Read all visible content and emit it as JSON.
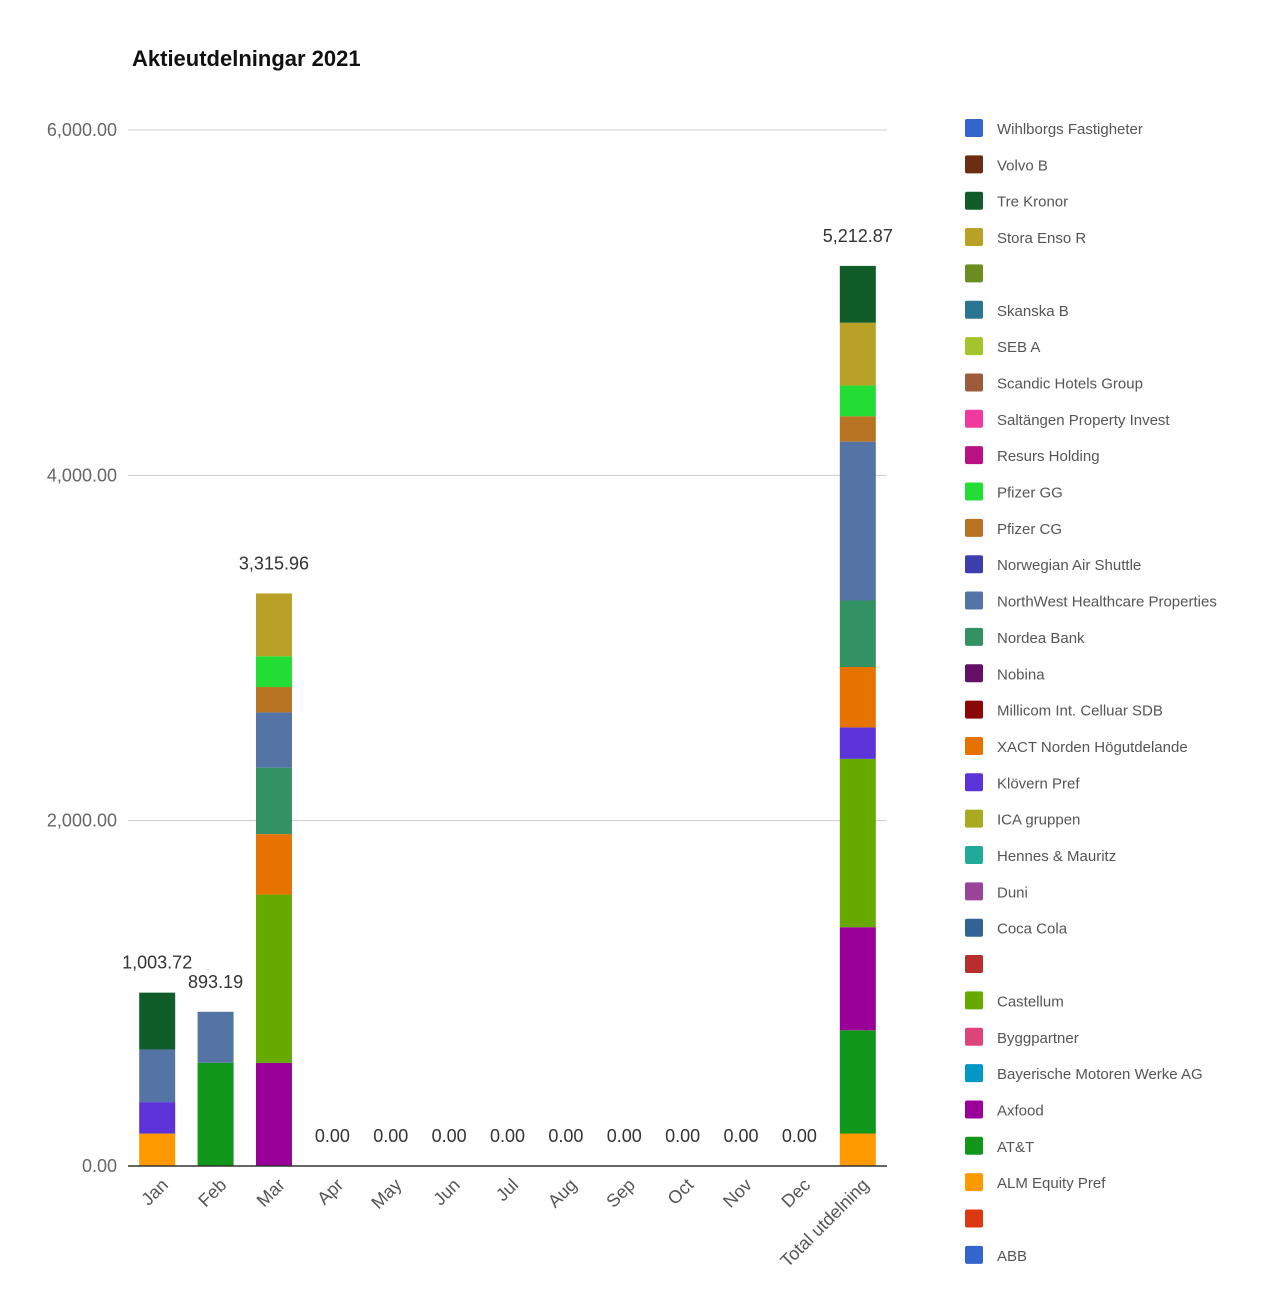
{
  "chart_data": {
    "type": "bar",
    "stacked": true,
    "title": "Aktieutdelningar 2021",
    "categories": [
      "Jan",
      "Feb",
      "Mar",
      "Apr",
      "May",
      "Jun",
      "Jul",
      "Aug",
      "Sep",
      "Oct",
      "Nov",
      "Dec",
      "Total utdelning"
    ],
    "totals": [
      1003.72,
      893.19,
      3315.96,
      0,
      0,
      0,
      0,
      0,
      0,
      0,
      0,
      0,
      5212.87
    ],
    "total_labels": [
      "1,003.72",
      "893.19",
      "3,315.96",
      "0.00",
      "0.00",
      "0.00",
      "0.00",
      "0.00",
      "0.00",
      "0.00",
      "0.00",
      "0.00",
      "5,212.87"
    ],
    "ylim": [
      0,
      6000
    ],
    "yticks": [
      0,
      2000,
      4000,
      6000
    ],
    "ytick_labels": [
      "0.00",
      "2,000.00",
      "4,000.00",
      "6,000.00"
    ],
    "grid": true,
    "legend_position": "right",
    "series": [
      {
        "name": "ALM Equity Pref",
        "color": "#ff9900",
        "values": [
          188,
          0,
          0,
          0,
          0,
          0,
          0,
          0,
          0,
          0,
          0,
          0,
          188
        ]
      },
      {
        "name": "AT&T",
        "color": "#109618",
        "values": [
          0,
          598,
          0,
          0,
          0,
          0,
          0,
          0,
          0,
          0,
          0,
          0,
          598
        ]
      },
      {
        "name": "Axfood",
        "color": "#990099",
        "values": [
          0,
          0,
          597,
          0,
          0,
          0,
          0,
          0,
          0,
          0,
          0,
          0,
          597
        ]
      },
      {
        "name": "Castellum",
        "color": "#66aa00",
        "values": [
          0,
          0,
          975,
          0,
          0,
          0,
          0,
          0,
          0,
          0,
          0,
          0,
          975
        ]
      },
      {
        "name": "Klövern Pref",
        "color": "#5b33d9",
        "values": [
          182,
          0,
          0,
          0,
          0,
          0,
          0,
          0,
          0,
          0,
          0,
          0,
          182
        ]
      },
      {
        "name": "XACT Norden Högutdelande",
        "color": "#e67300",
        "values": [
          0,
          0,
          350,
          0,
          0,
          0,
          0,
          0,
          0,
          0,
          0,
          0,
          350
        ]
      },
      {
        "name": "Nordea Bank",
        "color": "#329262",
        "values": [
          0,
          0,
          385,
          0,
          0,
          0,
          0,
          0,
          0,
          0,
          0,
          0,
          385
        ]
      },
      {
        "name": "NorthWest Healthcare Properties",
        "color": "#5574a6",
        "values": [
          305,
          295,
          320,
          0,
          0,
          0,
          0,
          0,
          0,
          0,
          0,
          0,
          920
        ]
      },
      {
        "name": "Pfizer CG",
        "color": "#b77322",
        "values": [
          0,
          0,
          147,
          0,
          0,
          0,
          0,
          0,
          0,
          0,
          0,
          0,
          147
        ]
      },
      {
        "name": "Pfizer GG",
        "color": "#22dd33",
        "values": [
          0,
          0,
          178,
          0,
          0,
          0,
          0,
          0,
          0,
          0,
          0,
          0,
          178
        ]
      },
      {
        "name": "Stora Enso R",
        "color": "#b8a126",
        "values": [
          0,
          0,
          364,
          0,
          0,
          0,
          0,
          0,
          0,
          0,
          0,
          0,
          364
        ]
      },
      {
        "name": "Tre Kronor",
        "color": "#115d2a",
        "values": [
          329,
          0,
          0,
          0,
          0,
          0,
          0,
          0,
          0,
          0,
          0,
          0,
          329
        ]
      }
    ],
    "legend": [
      {
        "name": "Wihlborgs Fastigheter",
        "color": "#3366cc"
      },
      {
        "name": "Volvo B",
        "color": "#6b2e13"
      },
      {
        "name": "Tre Kronor",
        "color": "#115d2a"
      },
      {
        "name": "Stora Enso R",
        "color": "#b8a126"
      },
      {
        "name": "",
        "color": "#6b8e23"
      },
      {
        "name": "Skanska B",
        "color": "#2a7592"
      },
      {
        "name": "SEB A",
        "color": "#a4c42c"
      },
      {
        "name": "Scandic Hotels Group",
        "color": "#9c5b3b"
      },
      {
        "name": "Saltängen Property Invest",
        "color": "#f03aa0"
      },
      {
        "name": "Resurs Holding",
        "color": "#b91383"
      },
      {
        "name": "Pfizer GG",
        "color": "#22dd33"
      },
      {
        "name": "Pfizer CG",
        "color": "#b77322"
      },
      {
        "name": "Norwegian Air Shuttle",
        "color": "#3b3eac"
      },
      {
        "name": "NorthWest Healthcare Properties",
        "color": "#5574a6"
      },
      {
        "name": "Nordea Bank",
        "color": "#329262"
      },
      {
        "name": "Nobina",
        "color": "#651067"
      },
      {
        "name": "Millicom Int. Celluar SDB",
        "color": "#8b0707"
      },
      {
        "name": "XACT Norden Högutdelande",
        "color": "#e67300"
      },
      {
        "name": "Klövern Pref",
        "color": "#5b33d9"
      },
      {
        "name": "ICA gruppen",
        "color": "#aaaa22"
      },
      {
        "name": "Hennes & Mauritz",
        "color": "#22aa99"
      },
      {
        "name": "Duni",
        "color": "#994499"
      },
      {
        "name": "Coca Cola",
        "color": "#316395"
      },
      {
        "name": "",
        "color": "#b82e2e"
      },
      {
        "name": "Castellum",
        "color": "#66aa00"
      },
      {
        "name": "Byggpartner",
        "color": "#dd4477"
      },
      {
        "name": "Bayerische Motoren Werke AG",
        "color": "#0099c6"
      },
      {
        "name": "Axfood",
        "color": "#990099"
      },
      {
        "name": "AT&T",
        "color": "#109618"
      },
      {
        "name": "ALM Equity Pref",
        "color": "#ff9900"
      },
      {
        "name": "",
        "color": "#dc3912"
      },
      {
        "name": "ABB",
        "color": "#3366cc"
      }
    ]
  }
}
